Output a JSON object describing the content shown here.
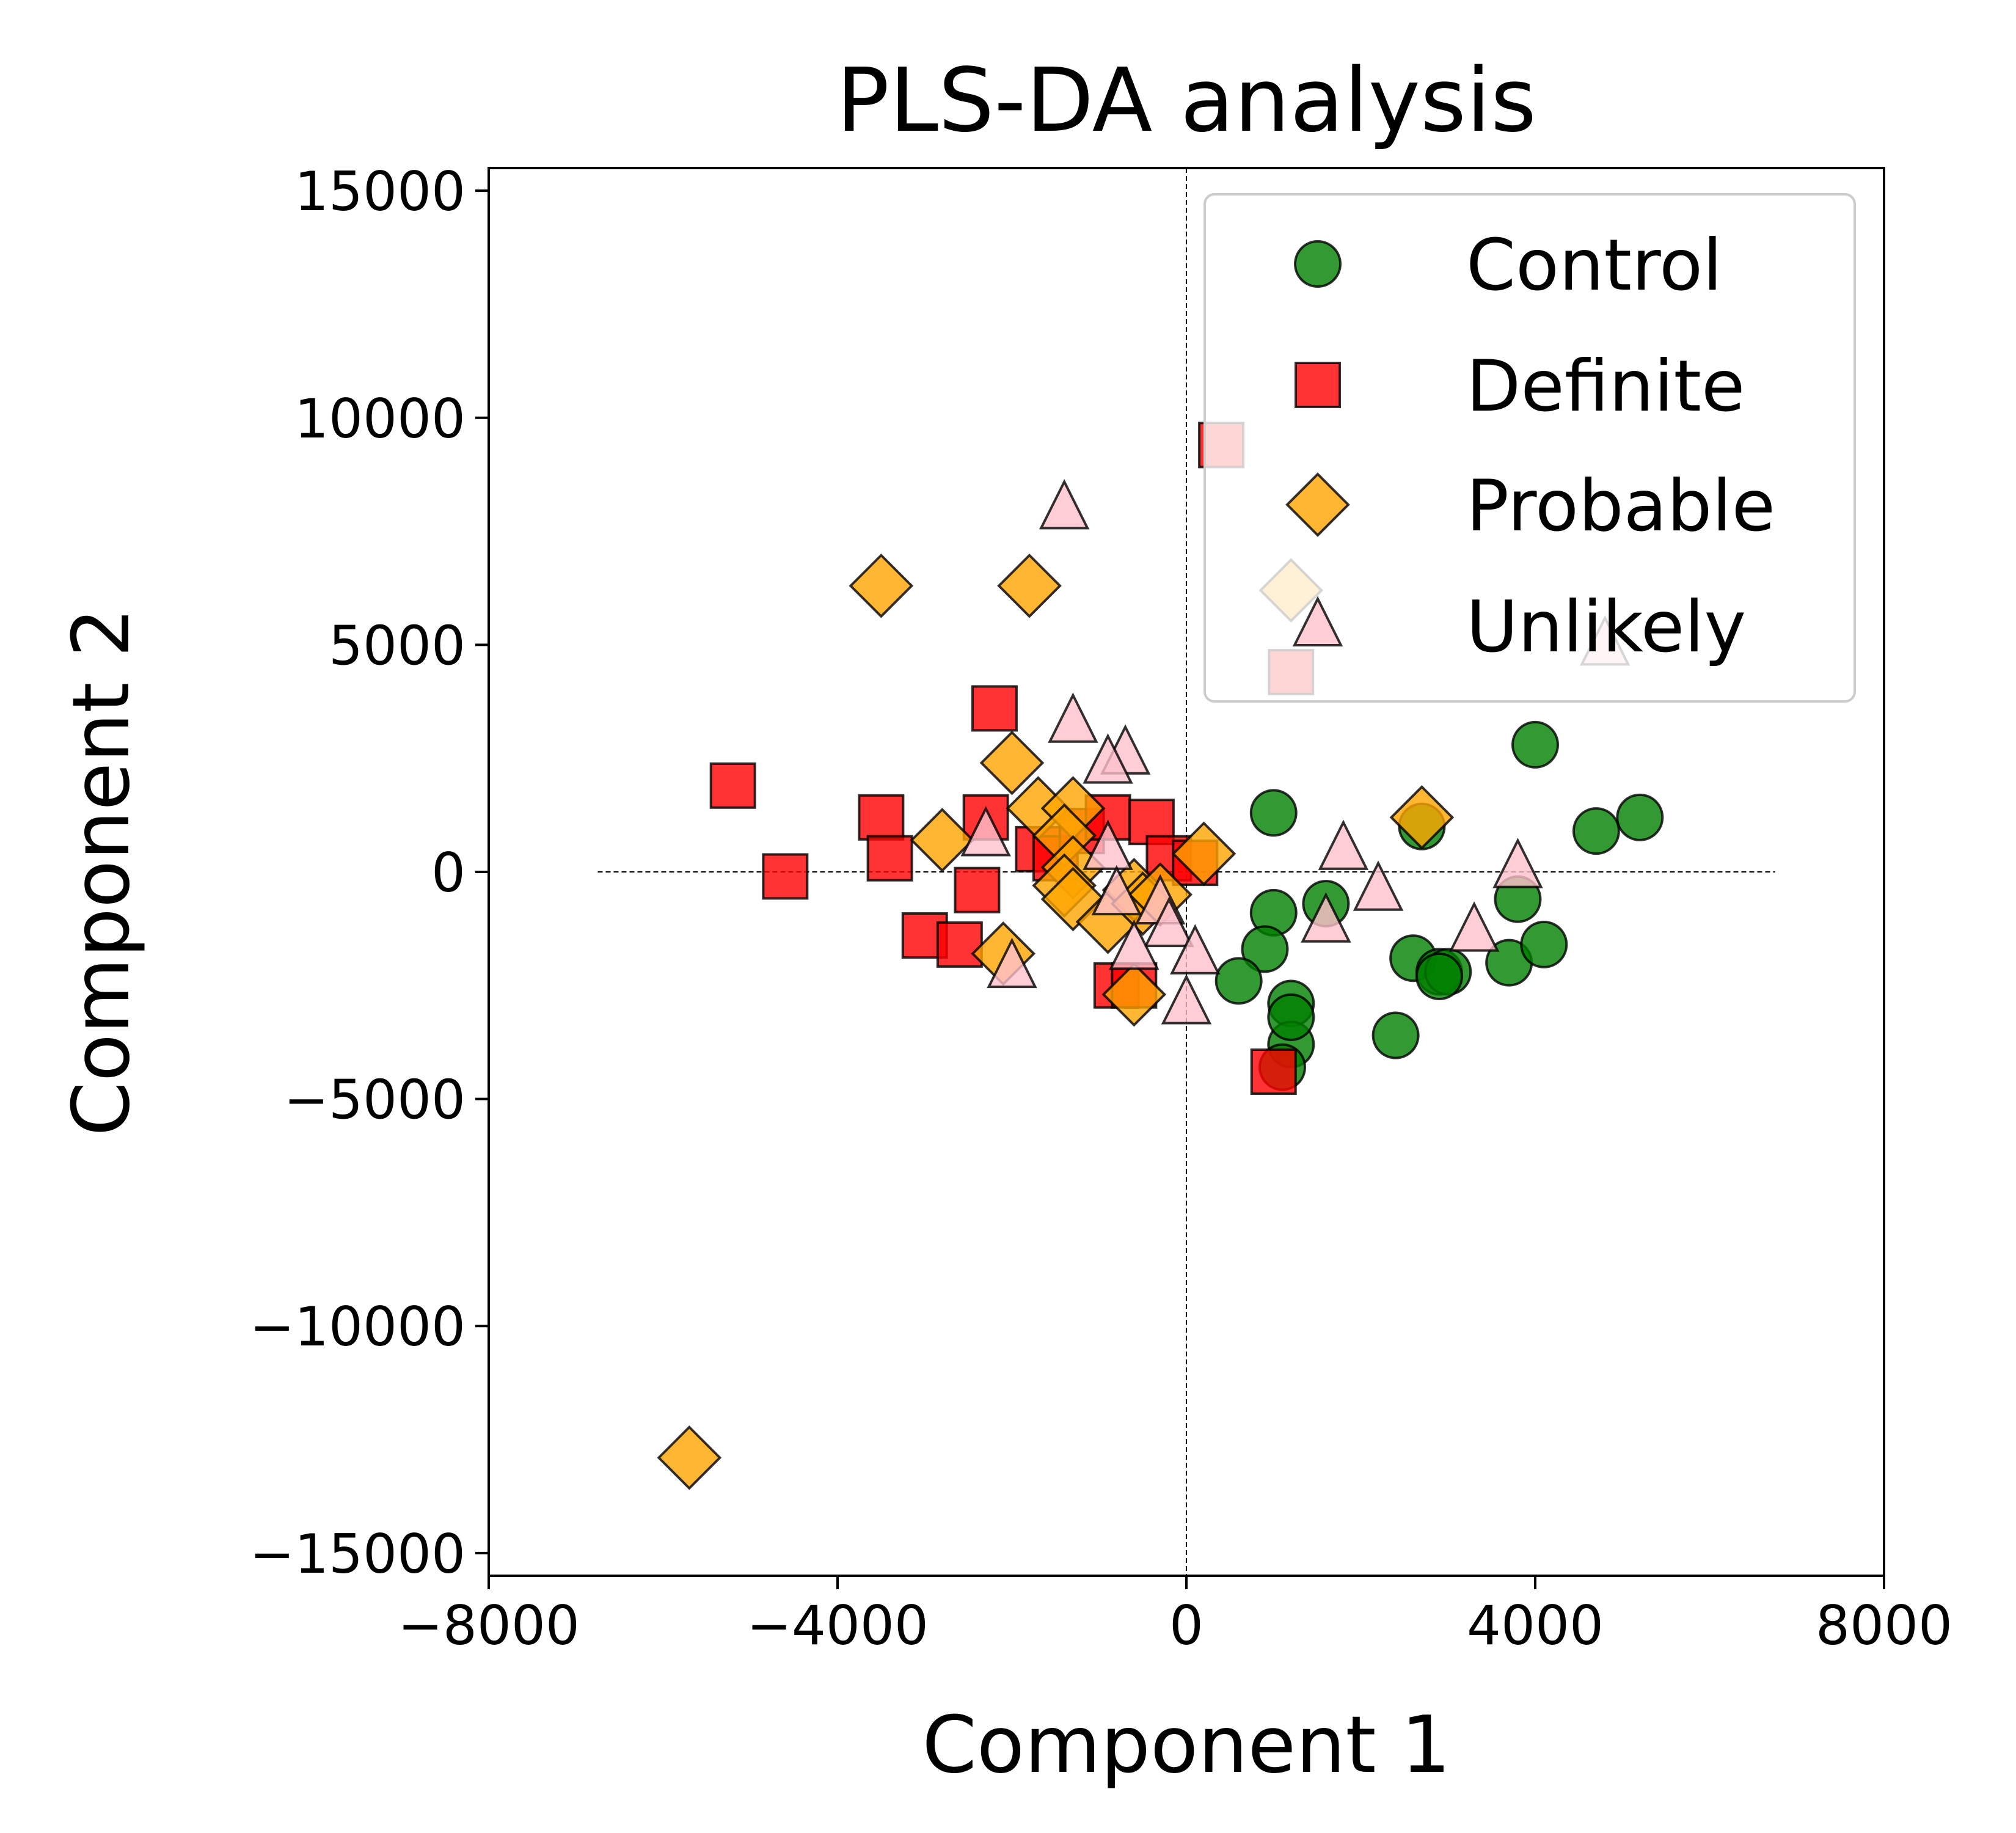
{
  "chart_data": {
    "type": "scatter",
    "title": "PLS-DA analysis",
    "xlabel": "Component 1",
    "ylabel": "Component 2",
    "xlim": [
      -8000,
      8000
    ],
    "ylim": [
      -15500,
      15500
    ],
    "xticks": [
      -8000,
      -4000,
      0,
      4000,
      8000
    ],
    "xtick_labels": [
      "−8000",
      "−4000",
      "0",
      "4000",
      "8000"
    ],
    "yticks": [
      -15000,
      -10000,
      -5000,
      0,
      5000,
      10000,
      15000
    ],
    "ytick_labels": [
      "−15000",
      "−10000",
      "−5000",
      "0",
      "5000",
      "10000",
      "15000"
    ],
    "reference_lines": {
      "horizontal_y": 0,
      "vertical_x": 0,
      "style": "dashed",
      "x_span": [
        -6750,
        6750
      ]
    },
    "grid": false,
    "legend_position": "top-right",
    "series": [
      {
        "name": "Control",
        "marker": "circle",
        "color": "#008000",
        "points": [
          [
            4000,
            2800
          ],
          [
            5200,
            1200
          ],
          [
            4700,
            900
          ],
          [
            2700,
            1000
          ],
          [
            1000,
            1300
          ],
          [
            1000,
            -900
          ],
          [
            1600,
            -700
          ],
          [
            900,
            -1700
          ],
          [
            2600,
            -1900
          ],
          [
            2900,
            -2200
          ],
          [
            3000,
            -2200
          ],
          [
            2900,
            -2300
          ],
          [
            3700,
            -2000
          ],
          [
            4100,
            -1600
          ],
          [
            3800,
            -600
          ],
          [
            600,
            -2400
          ],
          [
            1200,
            -2900
          ],
          [
            1200,
            -3800
          ],
          [
            1200,
            -3200
          ],
          [
            2400,
            -3600
          ],
          [
            1100,
            -4300
          ]
        ]
      },
      {
        "name": "Definite",
        "marker": "square",
        "color": "#ff0000",
        "points": [
          [
            -2200,
            3600
          ],
          [
            -5200,
            1900
          ],
          [
            -4600,
            -100
          ],
          [
            -3500,
            1200
          ],
          [
            -3400,
            300
          ],
          [
            -2300,
            1200
          ],
          [
            -2400,
            -400
          ],
          [
            -3000,
            -1400
          ],
          [
            -2600,
            -1600
          ],
          [
            -1700,
            500
          ],
          [
            -1500,
            300
          ],
          [
            -1200,
            900
          ],
          [
            -900,
            1200
          ],
          [
            -400,
            1100
          ],
          [
            -200,
            300
          ],
          [
            100,
            200
          ],
          [
            -800,
            -2500
          ],
          [
            -600,
            -2500
          ],
          [
            1000,
            -4400
          ],
          [
            400,
            9400
          ],
          [
            1200,
            4400
          ]
        ]
      },
      {
        "name": "Probable",
        "marker": "diamond",
        "color": "#ffa500",
        "points": [
          [
            -3500,
            6300
          ],
          [
            -1800,
            6300
          ],
          [
            -2000,
            2400
          ],
          [
            -1700,
            1400
          ],
          [
            -1300,
            1400
          ],
          [
            -2800,
            700
          ],
          [
            -1400,
            800
          ],
          [
            -1300,
            100
          ],
          [
            -1400,
            -300
          ],
          [
            -1300,
            -600
          ],
          [
            -900,
            -1100
          ],
          [
            -600,
            -400
          ],
          [
            -500,
            -700
          ],
          [
            -300,
            -500
          ],
          [
            200,
            400
          ],
          [
            -2100,
            -1800
          ],
          [
            -600,
            -2700
          ],
          [
            2700,
            1200
          ],
          [
            -5700,
            -12900
          ],
          [
            1200,
            6200
          ]
        ]
      },
      {
        "name": "Unlikely",
        "marker": "triangle",
        "color": "#ffc0cb",
        "points": [
          [
            -1400,
            8000
          ],
          [
            -1300,
            3300
          ],
          [
            -700,
            2600
          ],
          [
            -900,
            2400
          ],
          [
            -2300,
            800
          ],
          [
            -900,
            500
          ],
          [
            -800,
            -500
          ],
          [
            -300,
            -700
          ],
          [
            -200,
            -1200
          ],
          [
            -600,
            -1700
          ],
          [
            100,
            -1800
          ],
          [
            0,
            -2900
          ],
          [
            -2000,
            -2100
          ],
          [
            1600,
            -1100
          ],
          [
            1800,
            500
          ],
          [
            2200,
            -400
          ],
          [
            3300,
            -1300
          ],
          [
            3800,
            100
          ],
          [
            4800,
            5000
          ]
        ]
      }
    ]
  }
}
